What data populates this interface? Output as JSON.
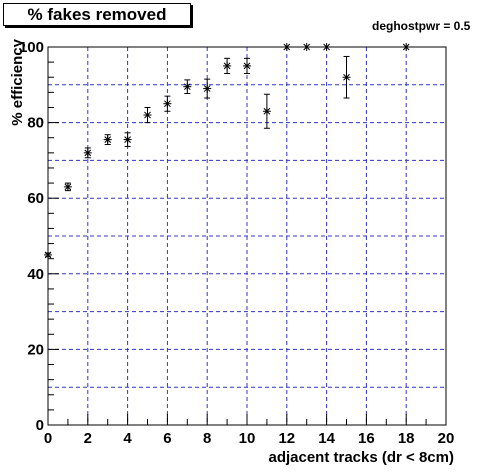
{
  "title": "% fakes removed",
  "subtitle": "deghostpwr = 0.5",
  "colors": {
    "grid": "#3333cc",
    "marker": "#000000",
    "frame": "#000000"
  },
  "chart_data": {
    "type": "scatter",
    "title": "% fakes removed",
    "xlabel": "adjacent tracks (dr < 8cm)",
    "ylabel": "% efficiency",
    "xlim": [
      0,
      20
    ],
    "ylim": [
      0,
      100
    ],
    "x_ticks": [
      0,
      2,
      4,
      6,
      8,
      10,
      12,
      14,
      16,
      18,
      20
    ],
    "y_ticks": [
      0,
      20,
      40,
      60,
      80,
      100
    ],
    "grid": true,
    "marker": "asterisk",
    "points": [
      {
        "x": 0,
        "y": 45,
        "err": 0.5
      },
      {
        "x": 1,
        "y": 63,
        "err": 1.0
      },
      {
        "x": 2,
        "y": 72,
        "err": 1.3
      },
      {
        "x": 3,
        "y": 75.5,
        "err": 1.3
      },
      {
        "x": 4,
        "y": 75.5,
        "err": 1.8
      },
      {
        "x": 5,
        "y": 82,
        "err": 2.0
      },
      {
        "x": 6,
        "y": 85,
        "err": 2.0
      },
      {
        "x": 7,
        "y": 89.5,
        "err": 1.8
      },
      {
        "x": 8,
        "y": 89,
        "err": 2.5
      },
      {
        "x": 9,
        "y": 95,
        "err": 2.0
      },
      {
        "x": 10,
        "y": 95,
        "err": 2.0
      },
      {
        "x": 11,
        "y": 83,
        "err": 4.5
      },
      {
        "x": 12,
        "y": 100,
        "err": 0
      },
      {
        "x": 13,
        "y": 100,
        "err": 0
      },
      {
        "x": 14,
        "y": 100,
        "err": 0
      },
      {
        "x": 15,
        "y": 92,
        "err": 5.5
      },
      {
        "x": 18,
        "y": 100,
        "err": 0
      }
    ]
  }
}
